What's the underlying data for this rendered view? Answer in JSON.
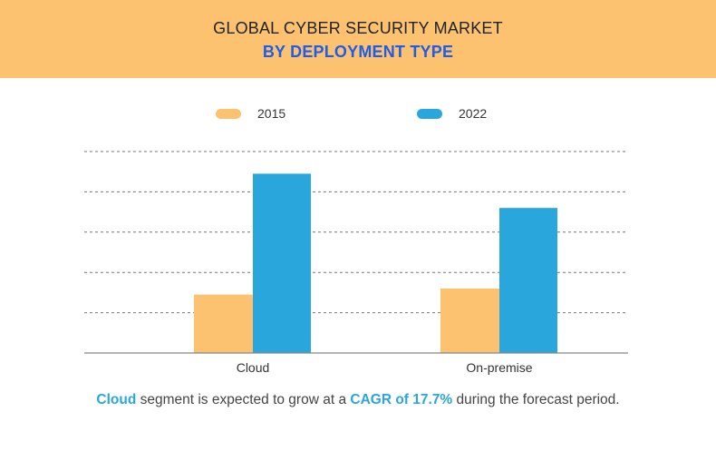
{
  "header": {
    "title": "GLOBAL CYBER SECURITY MARKET",
    "subtitle": "BY DEPLOYMENT TYPE"
  },
  "chart_data": {
    "type": "bar",
    "title": "GLOBAL CYBER SECURITY MARKET",
    "subtitle": "BY DEPLOYMENT TYPE",
    "categories": [
      "Cloud",
      "On-premise"
    ],
    "series": [
      {
        "name": "2015",
        "values": [
          1.45,
          1.6
        ],
        "color": "#fcc26f"
      },
      {
        "name": "2022",
        "values": [
          4.45,
          3.6
        ],
        "color": "#29a7dc"
      }
    ],
    "ylim": [
      0,
      5
    ],
    "grid": true,
    "y_tick_labels_shown": false,
    "legend": "top"
  },
  "caption": {
    "part1": "Cloud",
    "part2": " segment is expected to grow at a ",
    "part3": "CAGR of 17.7%",
    "part4": " during the forecast period."
  }
}
